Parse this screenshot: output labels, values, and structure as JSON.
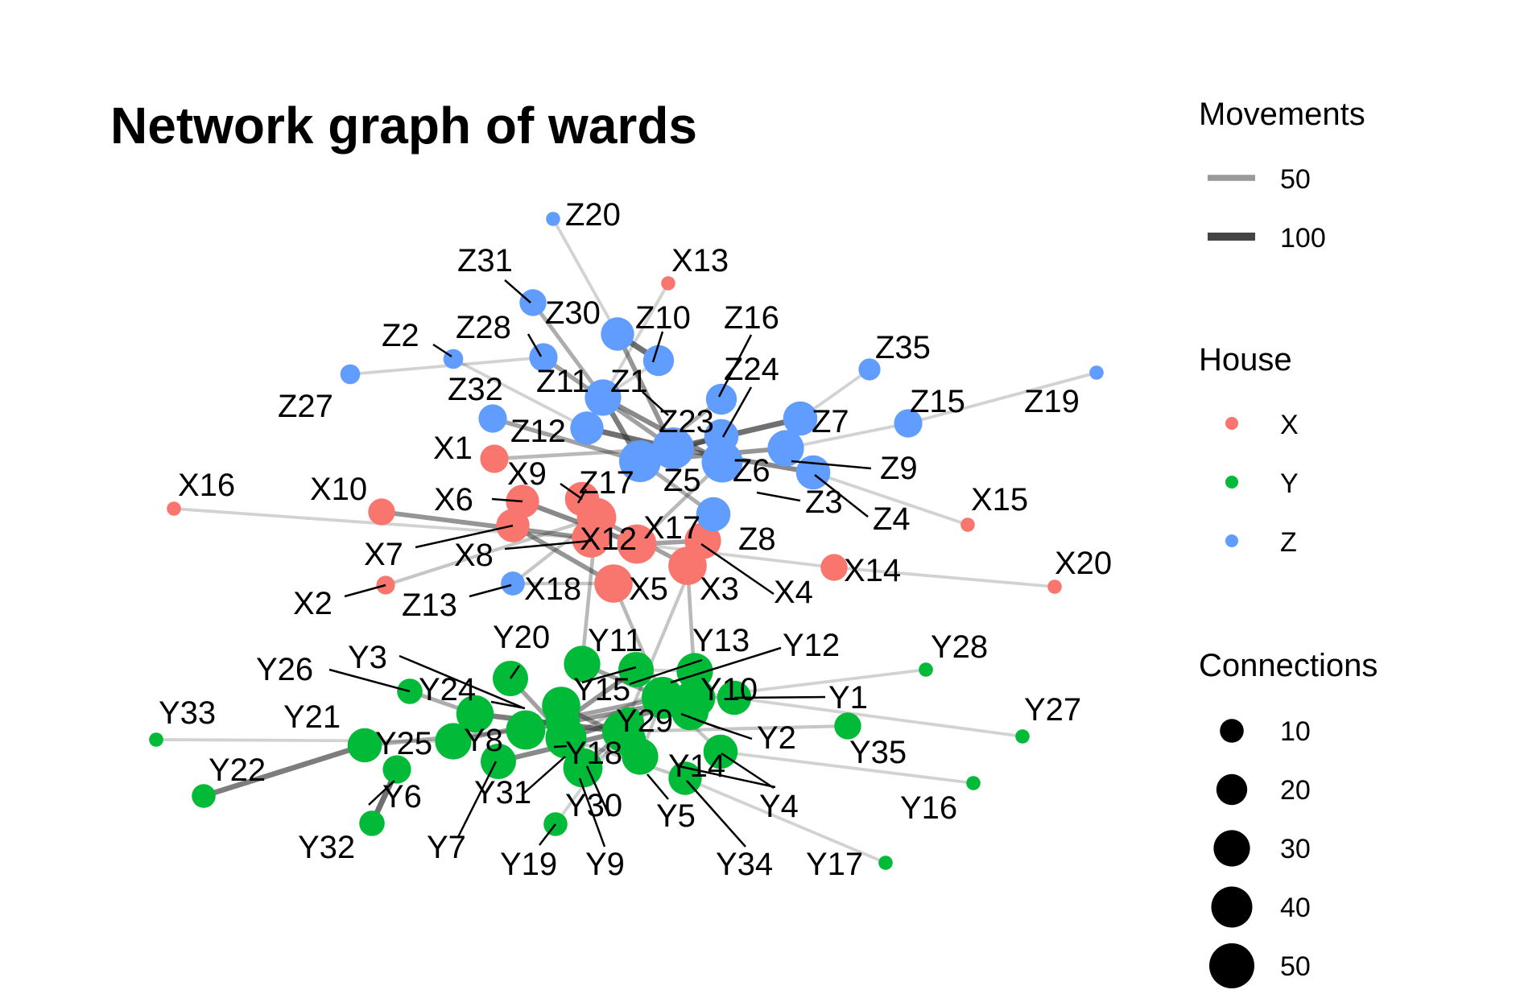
{
  "chart_data": {
    "type": "network",
    "title": "Network graph of wards",
    "legends": {
      "movements": {
        "title": "Movements",
        "entries": [
          {
            "label": "50",
            "value": 50,
            "color": "#999999"
          },
          {
            "label": "100",
            "value": 100,
            "color": "#444444"
          }
        ]
      },
      "house": {
        "title": "House",
        "entries": [
          {
            "label": "X",
            "color": "#F8766D"
          },
          {
            "label": "Y",
            "color": "#00BA38"
          },
          {
            "label": "Z",
            "color": "#619CFF"
          }
        ]
      },
      "connections": {
        "title": "Connections",
        "entries": [
          {
            "label": "10",
            "value": 10
          },
          {
            "label": "20",
            "value": 20
          },
          {
            "label": "30",
            "value": 30
          },
          {
            "label": "40",
            "value": 40
          },
          {
            "label": "50",
            "value": 50
          }
        ]
      }
    },
    "nodes": [
      {
        "id": "X1",
        "house": "X",
        "connections": 16
      },
      {
        "id": "X2",
        "house": "X",
        "connections": 5
      },
      {
        "id": "X3",
        "house": "X",
        "connections": 34
      },
      {
        "id": "X4",
        "house": "X",
        "connections": 30
      },
      {
        "id": "X5",
        "house": "X",
        "connections": 34
      },
      {
        "id": "X6",
        "house": "X",
        "connections": 24
      },
      {
        "id": "X7",
        "house": "X",
        "connections": 24
      },
      {
        "id": "X8",
        "house": "X",
        "connections": 34
      },
      {
        "id": "X9",
        "house": "X",
        "connections": 26
      },
      {
        "id": "X10",
        "house": "X",
        "connections": 14
      },
      {
        "id": "X12",
        "house": "X",
        "connections": 36
      },
      {
        "id": "X13",
        "house": "X",
        "connections": 2
      },
      {
        "id": "X14",
        "house": "X",
        "connections": 14
      },
      {
        "id": "X15",
        "house": "X",
        "connections": 2
      },
      {
        "id": "X16",
        "house": "X",
        "connections": 2
      },
      {
        "id": "X17",
        "house": "X",
        "connections": 36
      },
      {
        "id": "X18",
        "house": "Z",
        "connections": 10
      },
      {
        "id": "X20",
        "house": "X",
        "connections": 2
      },
      {
        "id": "Z1",
        "house": "Z",
        "connections": 30
      },
      {
        "id": "Z2",
        "house": "Z",
        "connections": 6
      },
      {
        "id": "Z3",
        "house": "Z",
        "connections": 26
      },
      {
        "id": "Z4",
        "house": "Z",
        "connections": 22
      },
      {
        "id": "Z5",
        "house": "Z",
        "connections": 42
      },
      {
        "id": "Z6",
        "house": "Z",
        "connections": 40
      },
      {
        "id": "Z7",
        "house": "Z",
        "connections": 26
      },
      {
        "id": "Z8",
        "house": "Z",
        "connections": 26
      },
      {
        "id": "Z9",
        "house": "Z",
        "connections": 30
      },
      {
        "id": "Z10",
        "house": "Z",
        "connections": 20
      },
      {
        "id": "Z11",
        "house": "Z",
        "connections": 26
      },
      {
        "id": "Z12",
        "house": "Z",
        "connections": 24
      },
      {
        "id": "Z13",
        "house": "Z",
        "connections": 10
      },
      {
        "id": "Z15",
        "house": "Z",
        "connections": 16
      },
      {
        "id": "Z16",
        "house": "Z",
        "connections": 20
      },
      {
        "id": "Z17",
        "house": "Z",
        "connections": 40
      },
      {
        "id": "Z19",
        "house": "Z",
        "connections": 2
      },
      {
        "id": "Z20",
        "house": "Z",
        "connections": 2
      },
      {
        "id": "Z23",
        "house": "Z",
        "connections": 42
      },
      {
        "id": "Z24",
        "house": "Z",
        "connections": 26
      },
      {
        "id": "Z27",
        "house": "Z",
        "connections": 6
      },
      {
        "id": "Z28",
        "house": "Z",
        "connections": 16
      },
      {
        "id": "Z30",
        "house": "Z",
        "connections": 24
      },
      {
        "id": "Z31",
        "house": "Z",
        "connections": 14
      },
      {
        "id": "Z32",
        "house": "Z",
        "connections": 16
      },
      {
        "id": "Z35",
        "house": "Z",
        "connections": 8
      },
      {
        "id": "Y1",
        "house": "Y",
        "connections": 26
      },
      {
        "id": "Y2",
        "house": "Y",
        "connections": 32
      },
      {
        "id": "Y3",
        "house": "Y",
        "connections": 34
      },
      {
        "id": "Y4",
        "house": "Y",
        "connections": 26
      },
      {
        "id": "Y5",
        "house": "Y",
        "connections": 30
      },
      {
        "id": "Y6",
        "house": "Y",
        "connections": 16
      },
      {
        "id": "Y7",
        "house": "Y",
        "connections": 28
      },
      {
        "id": "Y8",
        "house": "Y",
        "connections": 36
      },
      {
        "id": "Y9",
        "house": "Y",
        "connections": 36
      },
      {
        "id": "Y10",
        "house": "Y",
        "connections": 36
      },
      {
        "id": "Y11",
        "house": "Y",
        "connections": 30
      },
      {
        "id": "Y12",
        "house": "Y",
        "connections": 30
      },
      {
        "id": "Y13",
        "house": "Y",
        "connections": 28
      },
      {
        "id": "Y14",
        "house": "Y",
        "connections": 24
      },
      {
        "id": "Y15",
        "house": "Y",
        "connections": 42
      },
      {
        "id": "Y16",
        "house": "Y",
        "connections": 2
      },
      {
        "id": "Y17",
        "house": "Y",
        "connections": 2
      },
      {
        "id": "Y18",
        "house": "Y",
        "connections": 40
      },
      {
        "id": "Y19",
        "house": "Y",
        "connections": 10
      },
      {
        "id": "Y20",
        "house": "Y",
        "connections": 28
      },
      {
        "id": "Y21",
        "house": "Y",
        "connections": 26
      },
      {
        "id": "Y22",
        "house": "Y",
        "connections": 10
      },
      {
        "id": "Y24",
        "house": "Y",
        "connections": 32
      },
      {
        "id": "Y25",
        "house": "Y",
        "connections": 30
      },
      {
        "id": "Y26",
        "house": "Y",
        "connections": 12
      },
      {
        "id": "Y27",
        "house": "Y",
        "connections": 2
      },
      {
        "id": "Y28",
        "house": "Y",
        "connections": 2
      },
      {
        "id": "Y29",
        "house": "Y",
        "connections": 38
      },
      {
        "id": "Y30",
        "house": "Y",
        "connections": 26
      },
      {
        "id": "Y31",
        "house": "Y",
        "connections": 26
      },
      {
        "id": "Y32",
        "house": "Y",
        "connections": 12
      },
      {
        "id": "Y33",
        "house": "Y",
        "connections": 2
      },
      {
        "id": "Y34",
        "house": "Y",
        "connections": 20
      },
      {
        "id": "Y35",
        "house": "Y",
        "connections": 14
      }
    ],
    "edges": [
      {
        "from": "Y32",
        "to": "Y6",
        "movements": 100
      },
      {
        "from": "Z10",
        "to": "Z30",
        "movements": 100
      },
      {
        "from": "Z12",
        "to": "Z23",
        "movements": 100
      },
      {
        "from": "Z23",
        "to": "Z7",
        "movements": 100
      },
      {
        "from": "Y22",
        "to": "Y21",
        "movements": 90
      },
      {
        "from": "Z11",
        "to": "Z5",
        "movements": 90
      },
      {
        "from": "X8",
        "to": "X12",
        "movements": 90
      },
      {
        "from": "Y3",
        "to": "Y18",
        "movements": 90
      },
      {
        "from": "Y24",
        "to": "Y29",
        "movements": 90
      },
      {
        "from": "Z17",
        "to": "Z5",
        "movements": 80
      },
      {
        "from": "Z23",
        "to": "Z3",
        "movements": 80
      },
      {
        "from": "X9",
        "to": "X12",
        "movements": 80
      },
      {
        "from": "X6",
        "to": "X17",
        "movements": 80
      },
      {
        "from": "Y7",
        "to": "Y29",
        "movements": 80
      },
      {
        "from": "Y18",
        "to": "Y10",
        "movements": 80
      },
      {
        "from": "Y15",
        "to": "Y2",
        "movements": 80
      },
      {
        "from": "Z1",
        "to": "Z6",
        "movements": 80
      },
      {
        "from": "Z9",
        "to": "Z17",
        "movements": 70
      },
      {
        "from": "Z30",
        "to": "Z23",
        "movements": 70
      },
      {
        "from": "X10",
        "to": "X8",
        "movements": 70
      },
      {
        "from": "X7",
        "to": "X5",
        "movements": 70
      },
      {
        "from": "Y8",
        "to": "Y10",
        "movements": 70
      },
      {
        "from": "Y31",
        "to": "Y13",
        "movements": 70
      },
      {
        "from": "Y3",
        "to": "Y30",
        "movements": 70
      },
      {
        "from": "Z28",
        "to": "Z23",
        "movements": 60
      },
      {
        "from": "Z24",
        "to": "Z5",
        "movements": 60
      },
      {
        "from": "Z32",
        "to": "Z5",
        "movements": 60
      },
      {
        "from": "X3",
        "to": "X12",
        "movements": 60
      },
      {
        "from": "X4",
        "to": "X17",
        "movements": 60
      },
      {
        "from": "Y9",
        "to": "Y29",
        "movements": 60
      },
      {
        "from": "Y20",
        "to": "Y18",
        "movements": 60
      },
      {
        "from": "Y11",
        "to": "Y15",
        "movements": 60
      },
      {
        "from": "Y25",
        "to": "Y15",
        "movements": 60
      },
      {
        "from": "Y26",
        "to": "Y24",
        "movements": 50
      },
      {
        "from": "Y21",
        "to": "Y8",
        "movements": 50
      },
      {
        "from": "Z31",
        "to": "Z11",
        "movements": 50
      },
      {
        "from": "Z16",
        "to": "Z5",
        "movements": 50
      },
      {
        "from": "Z8",
        "to": "Z17",
        "movements": 50
      },
      {
        "from": "X1",
        "to": "Z23",
        "movements": 40
      },
      {
        "from": "X17",
        "to": "Z6",
        "movements": 40
      },
      {
        "from": "X5",
        "to": "Y15",
        "movements": 40
      },
      {
        "from": "X12",
        "to": "Y11",
        "movements": 40
      },
      {
        "from": "X3",
        "to": "Y10",
        "movements": 40
      },
      {
        "from": "Z8",
        "to": "Y29",
        "movements": 30
      },
      {
        "from": "Z13",
        "to": "X12",
        "movements": 30
      },
      {
        "from": "X18",
        "to": "X5",
        "movements": 30
      },
      {
        "from": "X2",
        "to": "X12",
        "movements": 30
      },
      {
        "from": "Y1",
        "to": "Y15",
        "movements": 30
      },
      {
        "from": "Y35",
        "to": "Y29",
        "movements": 30
      },
      {
        "from": "Y5",
        "to": "Y15",
        "movements": 30
      },
      {
        "from": "Y14",
        "to": "Y18",
        "movements": 30
      },
      {
        "from": "Y34",
        "to": "Y29",
        "movements": 30
      },
      {
        "from": "Y4",
        "to": "Y15",
        "movements": 30
      },
      {
        "from": "Y12",
        "to": "Y18",
        "movements": 30
      },
      {
        "from": "Y19",
        "to": "Y29",
        "movements": 20
      },
      {
        "from": "Y33",
        "to": "Y25",
        "movements": 20
      },
      {
        "from": "Y28",
        "to": "Y10",
        "movements": 20
      },
      {
        "from": "Y27",
        "to": "Y1",
        "movements": 20
      },
      {
        "from": "Y16",
        "to": "Y4",
        "movements": 20
      },
      {
        "from": "Y17",
        "to": "Y14",
        "movements": 20
      },
      {
        "from": "X16",
        "to": "X8",
        "movements": 20
      },
      {
        "from": "X20",
        "to": "X14",
        "movements": 20
      },
      {
        "from": "X15",
        "to": "Z3",
        "movements": 20
      },
      {
        "from": "X13",
        "to": "Z1",
        "movements": 20
      },
      {
        "from": "X14",
        "to": "X17",
        "movements": 20
      },
      {
        "from": "Z20",
        "to": "Z30",
        "movements": 20
      },
      {
        "from": "Z19",
        "to": "Z15",
        "movements": 20
      },
      {
        "from": "Z27",
        "to": "Z28",
        "movements": 20
      },
      {
        "from": "Z2",
        "to": "Z12",
        "movements": 20
      },
      {
        "from": "Z35",
        "to": "Z7",
        "movements": 20
      },
      {
        "from": "Z15",
        "to": "Z9",
        "movements": 20
      },
      {
        "from": "Z4",
        "to": "Z3",
        "movements": 20
      },
      {
        "from": "Z1",
        "to": "Z10",
        "movements": 20
      },
      {
        "from": "Y30",
        "to": "Y9",
        "movements": 20
      },
      {
        "from": "Y2",
        "to": "Y10",
        "movements": 20
      },
      {
        "from": "Y13",
        "to": "Y12",
        "movements": 20
      }
    ]
  }
}
